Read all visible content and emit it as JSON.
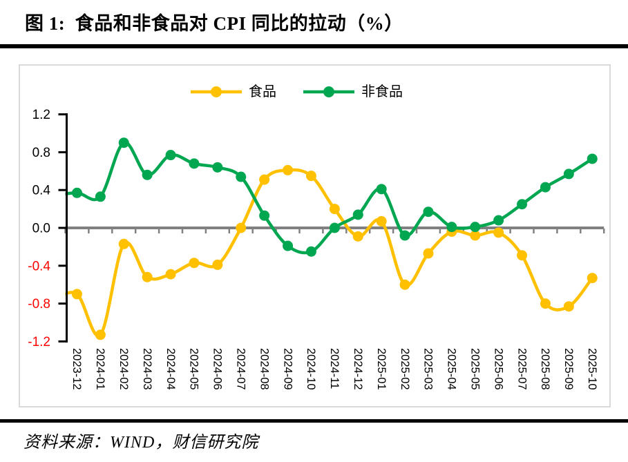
{
  "page": {
    "title": "图 1:  食品和非食品对 CPI 同比的拉动（%）",
    "source": "资料来源：WIND，财信研究院"
  },
  "chart_data": {
    "type": "line",
    "title": "图 1:  食品和非食品对 CPI 同比的拉动（%）",
    "categories": [
      "2023-12",
      "2024-01",
      "2024-02",
      "2024-03",
      "2024-04",
      "2024-05",
      "2024-06",
      "2024-07",
      "2024-08",
      "2024-09",
      "2024-10",
      "2024-11",
      "2024-12",
      "2025-01",
      "2025-02",
      "2025-03",
      "2025-04",
      "2025-05",
      "2025-06",
      "2025-07",
      "2025-08",
      "2025-09",
      "2025-10"
    ],
    "series": [
      {
        "name": "食品",
        "color": "#FFC000",
        "lead_in": -0.76,
        "values": [
          -0.7,
          -1.13,
          -0.17,
          -0.52,
          -0.49,
          -0.37,
          -0.39,
          0.0,
          0.51,
          0.61,
          0.55,
          0.2,
          -0.09,
          0.07,
          -0.6,
          -0.27,
          -0.04,
          -0.08,
          -0.05,
          -0.29,
          -0.8,
          -0.83,
          -0.53
        ]
      },
      {
        "name": "非食品",
        "color": "#00A650",
        "lead_in": 0.34,
        "values": [
          0.37,
          0.33,
          0.9,
          0.56,
          0.77,
          0.68,
          0.64,
          0.54,
          0.13,
          -0.19,
          -0.25,
          0.0,
          0.14,
          0.41,
          -0.08,
          0.17,
          0.01,
          0.01,
          0.08,
          0.25,
          0.43,
          0.57,
          0.73
        ]
      }
    ],
    "ylim": [
      -1.2,
      1.2
    ],
    "ytick_step": 0.4,
    "ytick_labels": [
      "1.2",
      "0.8",
      "0.4",
      "0.0",
      "-0.4",
      "-0.8",
      "-1.2"
    ],
    "xlabel": "",
    "ylabel": "",
    "grid": false,
    "smooth": true,
    "marker": "circle",
    "legend_position": "top-center",
    "colors": {
      "positive_tick_label": "#000000",
      "negative_tick_label": "#FF0000",
      "zero_line": "#808080",
      "axis": "#000000",
      "card_border": "#D9D9D9"
    }
  }
}
